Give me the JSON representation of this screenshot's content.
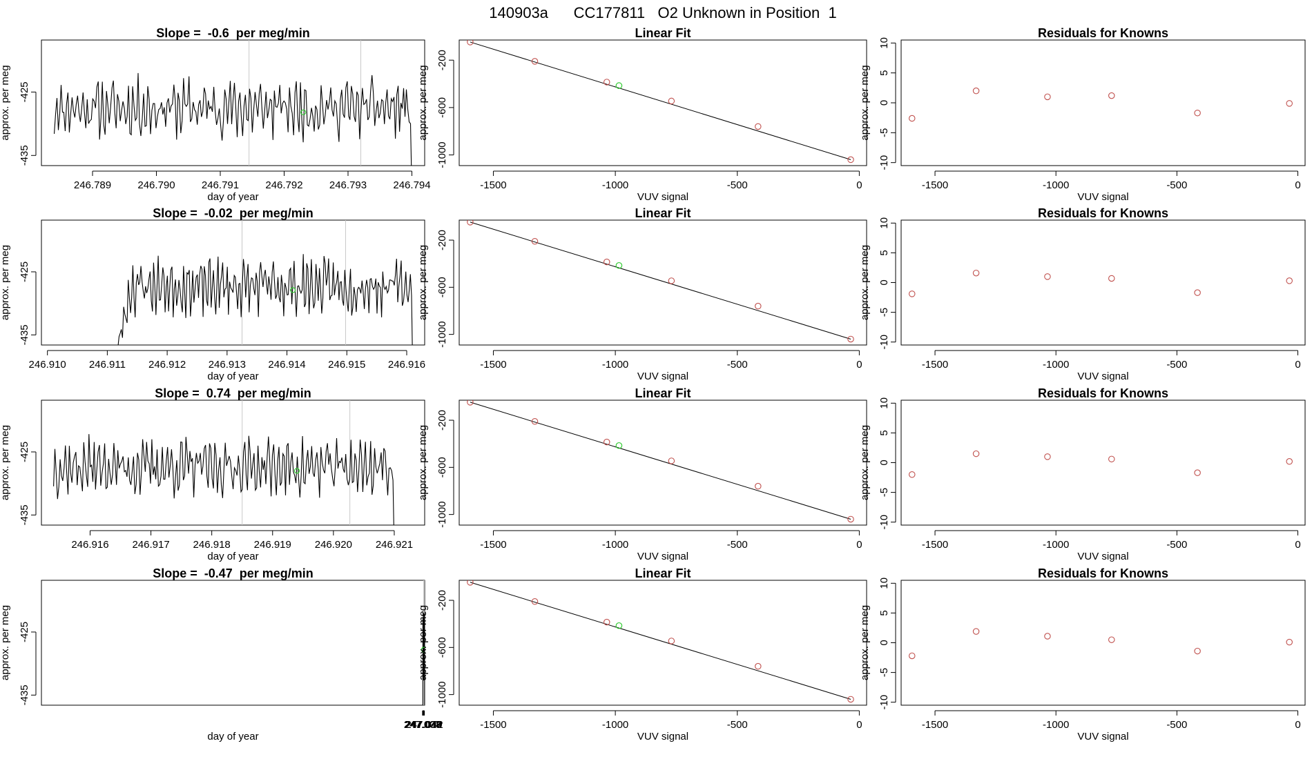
{
  "figure_title": "140903a      CC177811   O2 Unknown in Position  1",
  "colors": {
    "known_point": "#c0504d",
    "unknown_point": "#33cc33",
    "line": "#000000",
    "marker_line": "#c8c8c8"
  },
  "chart_data": [
    {
      "type": "line",
      "row": 1,
      "col": 1,
      "title": "Slope =  -0.6  per meg/min",
      "xlabel": "day of year",
      "ylabel": "approx. per meg",
      "xlim": [
        246.7882,
        246.7942
      ],
      "ylim": [
        -436.6,
        -416.8
      ],
      "xticks": [
        246.789,
        246.79,
        246.791,
        246.792,
        246.793,
        246.794
      ],
      "xtick_labels": [
        "246.789",
        "246.790",
        "246.791",
        "246.792",
        "246.793",
        "246.794"
      ],
      "yticks": [
        -435,
        -425
      ],
      "ytick_labels": [
        "-435",
        "-425"
      ],
      "x_start": 246.7884,
      "x_end": 246.794,
      "data_start": 246.7884,
      "base": -427.5,
      "amp": 4.6,
      "seed": 11,
      "vlines": [
        246.79145,
        246.7932
      ],
      "marker": {
        "x": 246.7923,
        "y": -428.2
      }
    },
    {
      "type": "scatter",
      "row": 1,
      "col": 2,
      "title": "Linear Fit",
      "xlabel": "VUV signal",
      "ylabel": "approx. per meg",
      "xlim": [
        -1640,
        30
      ],
      "ylim": [
        -1090,
        -30
      ],
      "xticks": [
        -1500,
        -1000,
        -500,
        0
      ],
      "xtick_labels": [
        "-1500",
        "-1000",
        "-500",
        "0"
      ],
      "yticks": [
        -1000,
        -600,
        -200
      ],
      "ytick_labels": [
        "-1000",
        "-600",
        "-200"
      ],
      "points_x": [
        -1595,
        -1330,
        -1035,
        -770,
        -415,
        -35
      ],
      "points_y": [
        -47,
        -210,
        -385,
        -545,
        -760,
        -1040
      ],
      "fit": {
        "x": [
          -1595,
          -35
        ],
        "y": [
          -47,
          -1040
        ]
      },
      "unknown": {
        "x": -985,
        "y": -415
      }
    },
    {
      "type": "scatter",
      "row": 1,
      "col": 3,
      "title": "Residuals for Knowns",
      "xlabel": "VUV signal",
      "ylabel": "approx. per meg",
      "xlim": [
        -1640,
        30
      ],
      "ylim": [
        -10.5,
        10.5
      ],
      "xticks": [
        -1500,
        -1000,
        -500,
        0
      ],
      "xtick_labels": [
        "-1500",
        "-1000",
        "-500",
        "0"
      ],
      "yticks": [
        -10,
        -5,
        0,
        5,
        10
      ],
      "ytick_labels": [
        "-10",
        "-5",
        "0",
        "5",
        "10"
      ],
      "points_x": [
        -1595,
        -1330,
        -1035,
        -770,
        -415,
        -35
      ],
      "points_y": [
        -2.6,
        2.0,
        1.0,
        1.2,
        -1.7,
        -0.1
      ]
    },
    {
      "type": "line",
      "row": 2,
      "col": 1,
      "title": "Slope =  -0.02  per meg/min",
      "xlabel": "day of year",
      "ylabel": "approx. per meg",
      "xlim": [
        246.9099,
        246.9163
      ],
      "ylim": [
        -436.6,
        -416.8
      ],
      "xticks": [
        246.91,
        246.911,
        246.912,
        246.913,
        246.914,
        246.915,
        246.916
      ],
      "xtick_labels": [
        "246.910",
        "246.911",
        "246.912",
        "246.913",
        "246.914",
        "246.915",
        "246.916"
      ],
      "yticks": [
        -435,
        -425
      ],
      "ytick_labels": [
        "-435",
        "-425"
      ],
      "x_start": 246.9111,
      "x_end": 246.9161,
      "data_start": 246.9114,
      "base": -427.3,
      "amp": 4.4,
      "seed": 23,
      "vlines": [
        246.91325,
        246.91498
      ],
      "marker": {
        "x": 246.9141,
        "y": -427.9
      }
    },
    {
      "type": "scatter",
      "row": 2,
      "col": 2,
      "title": "Linear Fit",
      "xlabel": "VUV signal",
      "ylabel": "approx. per meg",
      "xlim": [
        -1640,
        30
      ],
      "ylim": [
        -1090,
        -30
      ],
      "xticks": [
        -1500,
        -1000,
        -500,
        0
      ],
      "xtick_labels": [
        "-1500",
        "-1000",
        "-500",
        "0"
      ],
      "yticks": [
        -1000,
        -600,
        -200
      ],
      "ytick_labels": [
        "-1000",
        "-600",
        "-200"
      ],
      "points_x": [
        -1595,
        -1330,
        -1035,
        -770,
        -415,
        -35
      ],
      "points_y": [
        -47,
        -210,
        -385,
        -545,
        -760,
        -1040
      ],
      "fit": {
        "x": [
          -1595,
          -35
        ],
        "y": [
          -47,
          -1040
        ]
      },
      "unknown": {
        "x": -985,
        "y": -415
      }
    },
    {
      "type": "scatter",
      "row": 2,
      "col": 3,
      "title": "Residuals for Knowns",
      "xlabel": "VUV signal",
      "ylabel": "approx. per meg",
      "xlim": [
        -1640,
        30
      ],
      "ylim": [
        -10.5,
        10.5
      ],
      "xticks": [
        -1500,
        -1000,
        -500,
        0
      ],
      "xtick_labels": [
        "-1500",
        "-1000",
        "-500",
        "0"
      ],
      "yticks": [
        -10,
        -5,
        0,
        5,
        10
      ],
      "ytick_labels": [
        "-10",
        "-5",
        "0",
        "5",
        "10"
      ],
      "points_x": [
        -1595,
        -1330,
        -1035,
        -770,
        -415,
        -35
      ],
      "points_y": [
        -1.9,
        1.6,
        1.0,
        0.7,
        -1.7,
        0.3
      ]
    },
    {
      "type": "line",
      "row": 3,
      "col": 1,
      "title": "Slope =  0.74  per meg/min",
      "xlabel": "day of year",
      "ylabel": "approx. per meg",
      "xlim": [
        246.9152,
        246.9215
      ],
      "ylim": [
        -436.6,
        -416.8
      ],
      "xticks": [
        246.916,
        246.917,
        246.918,
        246.919,
        246.92,
        246.921
      ],
      "xtick_labels": [
        "246.916",
        "246.917",
        "246.918",
        "246.919",
        "246.920",
        "246.921"
      ],
      "yticks": [
        -435,
        -425
      ],
      "ytick_labels": [
        "-435",
        "-425"
      ],
      "x_start": 246.9154,
      "x_end": 246.921,
      "data_start": 246.9154,
      "base": -427.4,
      "amp": 4.5,
      "seed": 37,
      "vlines": [
        246.9185,
        246.92027
      ],
      "marker": {
        "x": 246.9194,
        "y": -428.0
      }
    },
    {
      "type": "scatter",
      "row": 3,
      "col": 2,
      "title": "Linear Fit",
      "xlabel": "VUV signal",
      "ylabel": "approx. per meg",
      "xlim": [
        -1640,
        30
      ],
      "ylim": [
        -1090,
        -30
      ],
      "xticks": [
        -1500,
        -1000,
        -500,
        0
      ],
      "xtick_labels": [
        "-1500",
        "-1000",
        "-500",
        "0"
      ],
      "yticks": [
        -1000,
        -600,
        -200
      ],
      "ytick_labels": [
        "-1000",
        "-600",
        "-200"
      ],
      "points_x": [
        -1595,
        -1330,
        -1035,
        -770,
        -415,
        -35
      ],
      "points_y": [
        -47,
        -210,
        -385,
        -545,
        -760,
        -1040
      ],
      "fit": {
        "x": [
          -1595,
          -35
        ],
        "y": [
          -47,
          -1040
        ]
      },
      "unknown": {
        "x": -985,
        "y": -415
      }
    },
    {
      "type": "scatter",
      "row": 3,
      "col": 3,
      "title": "Residuals for Knowns",
      "xlabel": "VUV signal",
      "ylabel": "approx. per meg",
      "xlim": [
        -1640,
        30
      ],
      "ylim": [
        -10.5,
        10.5
      ],
      "xticks": [
        -1500,
        -1000,
        -500,
        0
      ],
      "xtick_labels": [
        "-1500",
        "-1000",
        "-500",
        "0"
      ],
      "yticks": [
        -10,
        -5,
        0,
        5,
        10
      ],
      "ytick_labels": [
        "-10",
        "-5",
        "0",
        "5",
        "10"
      ],
      "points_x": [
        -1595,
        -1330,
        -1035,
        -770,
        -415,
        -35
      ],
      "points_y": [
        -2.0,
        1.5,
        1.0,
        0.6,
        -1.7,
        0.2
      ]
    },
    {
      "type": "line",
      "row": 4,
      "col": 1,
      "title": "Slope =  -0.47  per meg/min",
      "xlabel": "day of year",
      "ylabel": "approx. per meg",
      "xlim": [
        246.0364,
        247.0427
      ],
      "ylim": [
        -436.6,
        -416.8
      ],
      "xticks": [
        247.037,
        247.038,
        247.039,
        247.04,
        247.041,
        247.042
      ],
      "xtick_labels": [
        "247.037",
        "247.038",
        "247.039",
        "247.040",
        "247.041",
        "247.042"
      ],
      "yticks": [
        -435,
        -425
      ],
      "ytick_labels": [
        "-435",
        "-425"
      ],
      "x_start": 247.0377,
      "x_end": 247.0426,
      "data_start": 247.038,
      "base": -427.4,
      "amp": 4.5,
      "seed": 51,
      "vlines": [
        247.03978,
        247.04152
      ],
      "marker": {
        "x": 247.0407,
        "y": -427.8
      }
    },
    {
      "type": "scatter",
      "row": 4,
      "col": 2,
      "title": "Linear Fit",
      "xlabel": "VUV signal",
      "ylabel": "approx. per meg",
      "xlim": [
        -1640,
        30
      ],
      "ylim": [
        -1090,
        -30
      ],
      "xticks": [
        -1500,
        -1000,
        -500,
        0
      ],
      "xtick_labels": [
        "-1500",
        "-1000",
        "-500",
        "0"
      ],
      "yticks": [
        -1000,
        -600,
        -200
      ],
      "ytick_labels": [
        "-1000",
        "-600",
        "-200"
      ],
      "points_x": [
        -1595,
        -1330,
        -1035,
        -770,
        -415,
        -35
      ],
      "points_y": [
        -47,
        -210,
        -385,
        -545,
        -760,
        -1040
      ],
      "fit": {
        "x": [
          -1595,
          -35
        ],
        "y": [
          -47,
          -1040
        ]
      },
      "unknown": {
        "x": -985,
        "y": -415
      }
    },
    {
      "type": "scatter",
      "row": 4,
      "col": 3,
      "title": "Residuals for Knowns",
      "xlabel": "VUV signal",
      "ylabel": "approx. per meg",
      "xlim": [
        -1640,
        30
      ],
      "ylim": [
        -10.5,
        10.5
      ],
      "xticks": [
        -1500,
        -1000,
        -500,
        0
      ],
      "xtick_labels": [
        "-1500",
        "-1000",
        "-500",
        "0"
      ],
      "yticks": [
        -10,
        -5,
        0,
        5,
        10
      ],
      "ytick_labels": [
        "-10",
        "-5",
        "0",
        "5",
        "10"
      ],
      "points_x": [
        -1595,
        -1330,
        -1035,
        -770,
        -415,
        -35
      ],
      "points_y": [
        -2.2,
        1.9,
        1.1,
        0.5,
        -1.4,
        0.1
      ]
    }
  ]
}
